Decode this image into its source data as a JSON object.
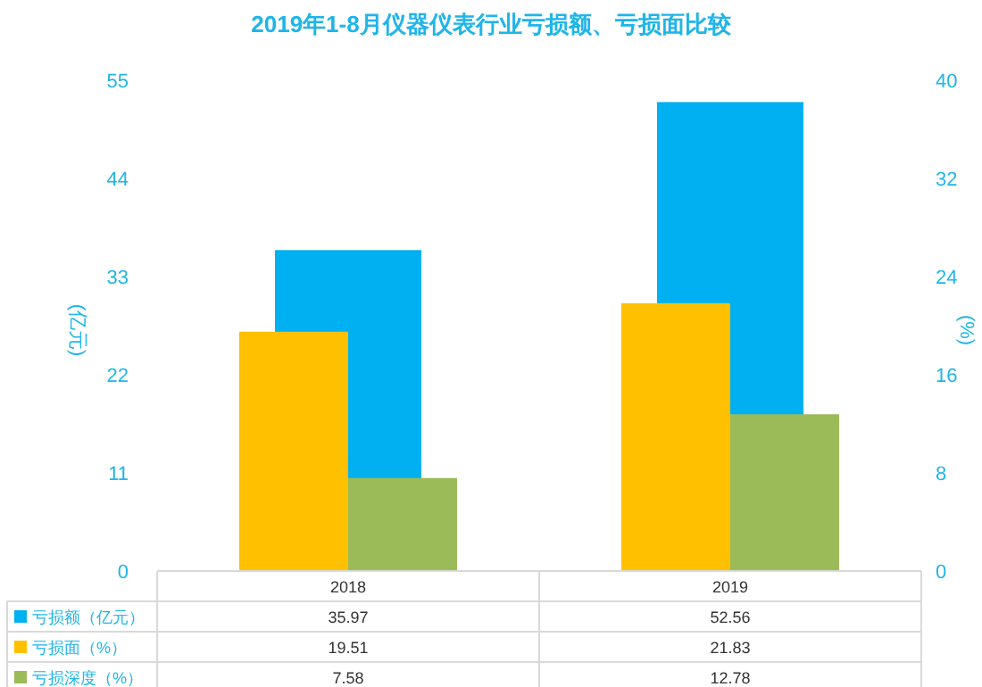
{
  "chart_data": {
    "type": "bar",
    "title": "2019年1-8月仪器仪表行业亏损额、亏损面比较",
    "ylabel": "(亿元)",
    "y2label": "(%)",
    "categories": [
      "2018",
      "2019"
    ],
    "series": [
      {
        "name": "亏损额（亿元）",
        "color": "#00b0f0",
        "values": [
          35.97,
          52.56
        ]
      },
      {
        "name": "亏损面（%）",
        "color": "#ffc000",
        "values": [
          19.51,
          21.83
        ],
        "axis": "y2"
      },
      {
        "name": "亏损深度（%）",
        "color": "#9bbb59",
        "values": [
          7.58,
          12.78
        ],
        "axis": "y2"
      }
    ],
    "ylim": [
      0,
      55
    ],
    "yticks": [
      0,
      11,
      22,
      33,
      44,
      55
    ],
    "y2lim": [
      0,
      40
    ],
    "y2ticks": [
      0,
      8,
      16,
      24,
      32,
      40
    ],
    "data_labels": true,
    "legend": "bottom",
    "grid": false
  }
}
